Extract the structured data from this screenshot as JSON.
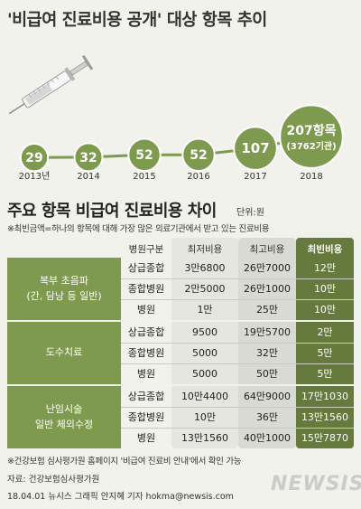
{
  "title": "'비급여 진료비용 공개' 대상 항목 추이",
  "chart_data": {
    "type": "line",
    "x": [
      "2013년",
      "2014",
      "2015",
      "2016",
      "2017",
      "2018"
    ],
    "values": [
      29,
      32,
      52,
      52,
      107,
      207
    ],
    "point_labels": [
      "29",
      "32",
      "52",
      "52",
      "107",
      "207항목"
    ],
    "last_point_sublabel": "(3762기관)",
    "color": "#7e9a4e"
  },
  "section2": {
    "title": "주요 항목 비급여 진료비용 차이",
    "unit": "단위:원",
    "note": "※최빈금액=하나의 항목에 대해 가장 많은 의료기관에서 받고 있는 진료비용"
  },
  "table": {
    "headers": [
      "병원구분",
      "최저비용",
      "최고비용",
      "최빈비용"
    ],
    "groups": [
      {
        "name_lines": [
          "복부 초음파",
          "(간, 담낭 등 일반)"
        ],
        "rows": [
          [
            "상급종합",
            "3만6800",
            "26만7000",
            "12만"
          ],
          [
            "종합병원",
            "2만5000",
            "26만1000",
            "10만"
          ],
          [
            "병원",
            "1만",
            "25만",
            "10만"
          ]
        ]
      },
      {
        "name_lines": [
          "도수치료"
        ],
        "rows": [
          [
            "상급종합",
            "9500",
            "19만5700",
            "2만"
          ],
          [
            "종합병원",
            "5000",
            "32만",
            "5만"
          ],
          [
            "병원",
            "5000",
            "50만",
            "5만"
          ]
        ]
      },
      {
        "name_lines": [
          "난임시술",
          "일반 체외수정"
        ],
        "rows": [
          [
            "상급종합",
            "10만4400",
            "64만9000",
            "17만1030"
          ],
          [
            "종합병원",
            "10만",
            "36만",
            "13만1560"
          ],
          [
            "병원",
            "13만1560",
            "40만1000",
            "15만7870"
          ]
        ]
      }
    ]
  },
  "footer": {
    "note": "※건강보험 심사평가원 홈페이지 '비급여 진료비 안내'에서 확인 가능",
    "source": "자료: 건강보험심사평가원",
    "credit": "18.04.01 뉴시스 그래픽 안지혜 기자 hokma@newsis.com",
    "logo": "NEWSIS"
  }
}
